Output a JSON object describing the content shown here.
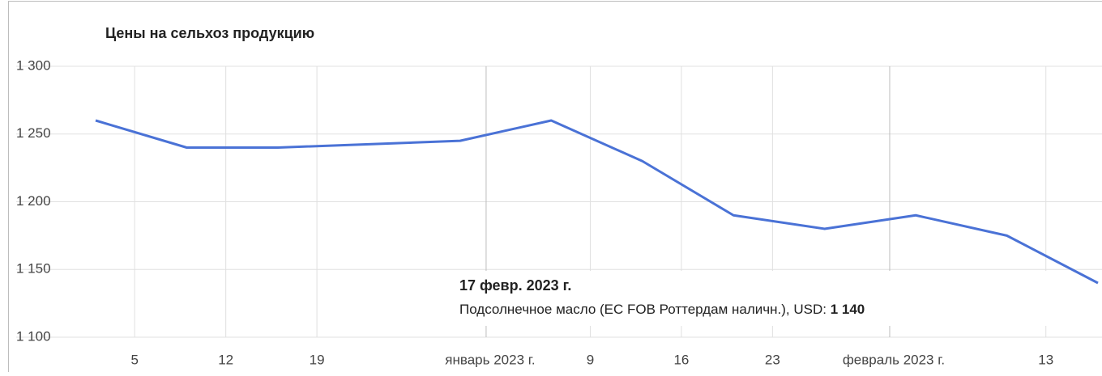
{
  "chart_data": {
    "type": "line",
    "title": "Цены на сельхоз продукцию",
    "x": [
      "2022-12-02",
      "2022-12-09",
      "2022-12-16",
      "2022-12-30",
      "2023-01-06",
      "2023-01-13",
      "2023-01-20",
      "2023-01-27",
      "2023-02-03",
      "2023-02-10",
      "2023-02-17"
    ],
    "series": [
      {
        "name": "Подсолнечное масло (ЕС FOB Роттердам наличн.)",
        "color": "#4a72d6",
        "values": [
          1260,
          1240,
          1240,
          1245,
          1260,
          1230,
          1190,
          1180,
          1190,
          1175,
          1140
        ],
        "value_labels": [
          null,
          null,
          null,
          null,
          null,
          null,
          null,
          null,
          null,
          null,
          "1 140"
        ]
      }
    ],
    "xlim": [
      "2022-12-02",
      "2023-02-17"
    ],
    "xticks": [
      {
        "value": "2022-12-05",
        "label": "5"
      },
      {
        "value": "2022-12-12",
        "label": "12"
      },
      {
        "value": "2022-12-19",
        "label": "19"
      },
      {
        "value": "2023-01-01",
        "label": "январь 2023 г."
      },
      {
        "value": "2023-01-09",
        "label": "9"
      },
      {
        "value": "2023-01-16",
        "label": "16"
      },
      {
        "value": "2023-01-23",
        "label": "23"
      },
      {
        "value": "2023-02-01",
        "label": "февраль 2023 г."
      },
      {
        "value": "2023-02-13",
        "label": "13"
      }
    ],
    "ylim": [
      1100,
      1300
    ],
    "yticks": [
      {
        "value": 1100,
        "label": "1 100"
      },
      {
        "value": 1150,
        "label": "1 150"
      },
      {
        "value": 1200,
        "label": "1 200"
      },
      {
        "value": 1250,
        "label": "1 250"
      },
      {
        "value": 1300,
        "label": "1 300"
      }
    ],
    "grid": true,
    "tooltip": {
      "date": "17 февр. 2023 г.",
      "text": "Подсолнечное масло (ЕС FOB Роттердам наличн.), USD:"
    }
  }
}
